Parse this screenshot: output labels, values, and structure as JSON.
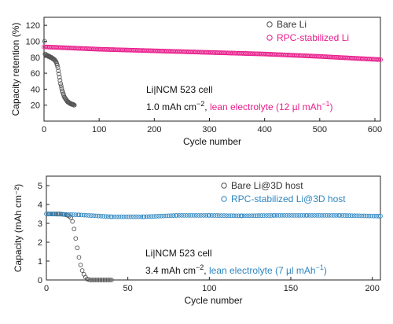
{
  "chart_data": [
    {
      "type": "scatter",
      "xlabel": "Cycle number",
      "ylabel": "Capacity retention (%)",
      "xlim": [
        0,
        610
      ],
      "ylim": [
        0,
        130
      ],
      "xticks": [
        0,
        100,
        200,
        300,
        400,
        500,
        600
      ],
      "yticks": [
        20,
        40,
        60,
        80,
        100,
        120
      ],
      "legend_position": "top-right",
      "annotation": {
        "line1": "Li|NCM 523 cell",
        "line2_a": "1.0 mAh cm",
        "line2_sup": "−2",
        "line2_b": ", ",
        "line2_c": "lean electrolyte (12 µl mAh",
        "line2_c_sup": "−1",
        "line2_d": ")"
      },
      "series": [
        {
          "name": "Bare Li",
          "color": "#555555",
          "marker": "open-circle",
          "x": [
            1,
            2,
            3,
            4,
            5,
            6,
            7,
            8,
            9,
            10,
            11,
            12,
            13,
            14,
            15,
            16,
            17,
            18,
            19,
            20,
            21,
            22,
            23,
            24,
            25,
            26,
            27,
            28,
            29,
            30,
            31,
            32,
            33,
            34,
            35,
            36,
            37,
            38,
            39,
            40,
            41,
            42,
            43,
            44,
            45,
            46,
            47,
            48,
            49,
            50,
            51,
            52,
            53,
            54,
            55
          ],
          "y": [
            100,
            84,
            83,
            83,
            82,
            82,
            82,
            81,
            81,
            81,
            80,
            80,
            80,
            79,
            79,
            78,
            78,
            77,
            77,
            76,
            75,
            74,
            72,
            70,
            67,
            63,
            59,
            55,
            51,
            47,
            44,
            41,
            38,
            36,
            34,
            32,
            30,
            29,
            28,
            27,
            26,
            25,
            24,
            24,
            23,
            23,
            22,
            22,
            22,
            21,
            21,
            21,
            21,
            20,
            20
          ]
        },
        {
          "name": "RPC-stabilized Li",
          "color": "#e91e8c",
          "marker": "open-circle",
          "x": [
            0,
            100,
            200,
            300,
            400,
            500,
            610
          ],
          "y": [
            93,
            90,
            88,
            86,
            84,
            81,
            77
          ]
        }
      ]
    },
    {
      "type": "scatter",
      "xlabel": "Cycle number",
      "ylabel": "Capacity (mAh cm⁻²)",
      "xlim": [
        0,
        205
      ],
      "ylim": [
        0,
        5.5
      ],
      "xticks": [
        0,
        50,
        100,
        150,
        200
      ],
      "yticks": [
        0,
        1,
        2,
        3,
        4,
        5
      ],
      "legend_position": "top-right",
      "annotation": {
        "line1": "Li|NCM 523 cell",
        "line2_a": "3.4 mAh cm",
        "line2_sup": "−2",
        "line2_b": ", ",
        "line2_c": "lean electrolyte (7 µl mAh",
        "line2_c_sup": "−1",
        "line2_d": ")"
      },
      "series": [
        {
          "name": "Bare Li@3D host",
          "color": "#555555",
          "marker": "open-circle",
          "x": [
            1,
            2,
            3,
            4,
            5,
            6,
            7,
            8,
            9,
            10,
            11,
            12,
            13,
            14,
            15,
            16,
            17,
            18,
            19,
            20,
            21,
            22,
            23,
            24,
            25,
            26,
            27,
            28,
            29,
            30,
            31,
            32,
            33,
            34,
            35,
            36,
            37,
            38,
            39,
            40
          ],
          "y": [
            3.5,
            3.5,
            3.5,
            3.5,
            3.5,
            3.5,
            3.5,
            3.5,
            3.49,
            3.48,
            3.47,
            3.45,
            3.42,
            3.38,
            3.3,
            3.1,
            2.7,
            2.2,
            1.7,
            1.2,
            0.8,
            0.5,
            0.3,
            0.15,
            0.05,
            0.02,
            0,
            0,
            0,
            0,
            0,
            0,
            0,
            0,
            0,
            0,
            0,
            0,
            0,
            0
          ]
        },
        {
          "name": "RPC-stabilized Li@3D host",
          "color": "#2e86c1",
          "marker": "open-circle",
          "x": [
            0,
            20,
            40,
            60,
            80,
            100,
            120,
            140,
            160,
            180,
            205
          ],
          "y": [
            3.5,
            3.45,
            3.35,
            3.35,
            3.42,
            3.42,
            3.4,
            3.42,
            3.42,
            3.42,
            3.38
          ]
        }
      ]
    }
  ]
}
